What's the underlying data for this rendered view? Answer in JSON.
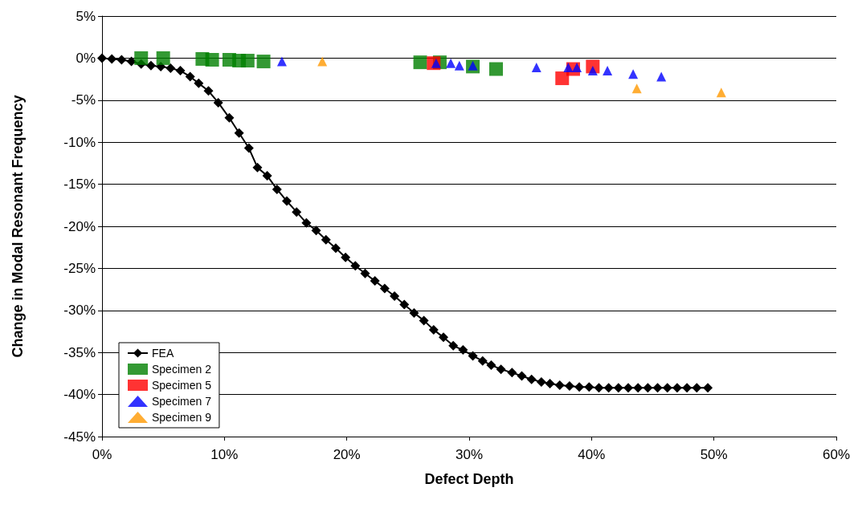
{
  "chart_data": {
    "type": "scatter",
    "xlabel": "Defect Depth",
    "ylabel": "Change in Modal Resonant Frequency",
    "xlim": [
      0,
      60
    ],
    "ylim": [
      -45,
      5
    ],
    "xticks": [
      {
        "value": 0,
        "label": "0%"
      },
      {
        "value": 10,
        "label": "10%"
      },
      {
        "value": 20,
        "label": "20%"
      },
      {
        "value": 30,
        "label": "30%"
      },
      {
        "value": 40,
        "label": "40%"
      },
      {
        "value": 50,
        "label": "50%"
      },
      {
        "value": 60,
        "label": "60%"
      }
    ],
    "yticks": [
      {
        "value": 5,
        "label": "5%"
      },
      {
        "value": 0,
        "label": "0%"
      },
      {
        "value": -5,
        "label": "-5%"
      },
      {
        "value": -10,
        "label": "-10%"
      },
      {
        "value": -15,
        "label": "-15%"
      },
      {
        "value": -20,
        "label": "-20%"
      },
      {
        "value": -25,
        "label": "-25%"
      },
      {
        "value": -30,
        "label": "-30%"
      },
      {
        "value": -35,
        "label": "-35%"
      },
      {
        "value": -40,
        "label": "-40%"
      },
      {
        "value": -45,
        "label": "-45%"
      }
    ],
    "grid": "y",
    "legend": "bottom left",
    "series": [
      {
        "name": "FEA",
        "type": "line",
        "marker": "diamond",
        "line_style": "solid",
        "color": "#000000",
        "x": [
          0,
          0.8,
          1.6,
          2.4,
          3.2,
          4.0,
          4.8,
          5.6,
          6.4,
          7.2,
          7.9,
          8.7,
          9.5,
          10.4,
          11.2,
          12.0,
          12.7,
          13.5,
          14.3,
          15.1,
          15.9,
          16.7,
          17.5,
          18.3,
          19.1,
          19.9,
          20.7,
          21.5,
          22.3,
          23.1,
          23.9,
          24.7,
          25.5,
          26.3,
          27.1,
          27.9,
          28.7,
          29.5,
          30.3,
          31.1,
          31.8,
          32.6,
          33.5,
          34.3,
          35.1,
          35.9,
          36.6,
          37.4,
          38.2,
          39.0,
          39.8,
          40.6,
          41.4,
          42.2,
          43.0,
          43.8,
          44.6,
          45.4,
          46.2,
          47.0,
          47.8,
          48.6,
          49.5
        ],
        "values": [
          0,
          -0.1,
          -0.2,
          -0.4,
          -0.7,
          -0.9,
          -1.0,
          -1.2,
          -1.5,
          -2.2,
          -3.0,
          -3.9,
          -5.3,
          -7.1,
          -8.9,
          -10.7,
          -13.0,
          -14.0,
          -15.6,
          -17.0,
          -18.3,
          -19.6,
          -20.5,
          -21.6,
          -22.6,
          -23.7,
          -24.7,
          -25.6,
          -26.5,
          -27.4,
          -28.3,
          -29.3,
          -30.3,
          -31.2,
          -32.3,
          -33.2,
          -34.2,
          -34.7,
          -35.4,
          -36.0,
          -36.5,
          -37.0,
          -37.4,
          -37.8,
          -38.2,
          -38.5,
          -38.7,
          -38.9,
          -39.0,
          -39.1,
          -39.1,
          -39.2,
          -39.2,
          -39.2,
          -39.2,
          -39.2,
          -39.2,
          -39.2,
          -39.2,
          -39.2,
          -39.2,
          -39.2,
          -39.2
        ]
      },
      {
        "name": "Specimen 2",
        "marker": "square",
        "color": "#008000",
        "x": [
          3.2,
          5.0,
          8.2,
          9.0,
          10.4,
          11.2,
          11.9,
          13.2,
          26.0,
          27.6,
          30.3,
          32.2
        ],
        "values": [
          0,
          0,
          -0.1,
          -0.2,
          -0.2,
          -0.3,
          -0.3,
          -0.4,
          -0.5,
          -0.5,
          -1.0,
          -1.3
        ]
      },
      {
        "name": "Specimen 5",
        "marker": "square",
        "color": "#ff0000",
        "x": [
          27.1,
          37.6,
          38.5,
          40.1
        ],
        "values": [
          -0.6,
          -2.4,
          -1.3,
          -1.0
        ]
      },
      {
        "name": "Specimen 7",
        "marker": "triangle",
        "color": "#0000ff",
        "x": [
          14.7,
          27.3,
          28.5,
          29.2,
          30.3,
          35.5,
          38.1,
          38.8,
          40.1,
          41.3,
          43.4,
          45.7
        ],
        "values": [
          -0.4,
          -0.6,
          -0.6,
          -0.9,
          -0.9,
          -1.1,
          -1.1,
          -1.1,
          -1.5,
          -1.5,
          -1.9,
          -2.2
        ]
      },
      {
        "name": "Specimen 9",
        "marker": "triangle",
        "color": "#ff9900",
        "x": [
          18.0,
          43.7,
          50.6
        ],
        "values": [
          -0.4,
          -3.6,
          -4.1
        ]
      }
    ]
  }
}
